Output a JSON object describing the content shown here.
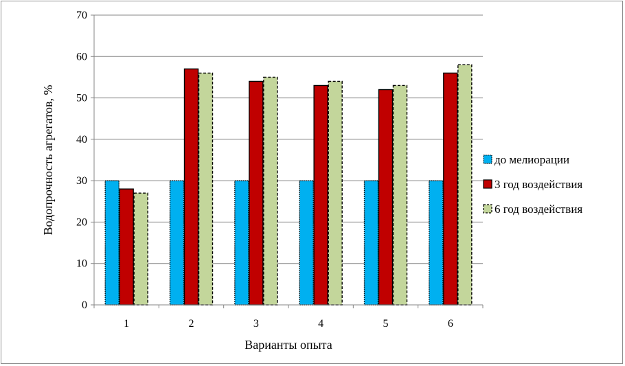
{
  "chart_data": {
    "type": "bar",
    "categories": [
      "1",
      "2",
      "3",
      "4",
      "5",
      "6"
    ],
    "series": [
      {
        "name": "до мелиорации",
        "values": [
          30,
          30,
          30,
          30,
          30,
          30
        ],
        "color": "#00b0f0",
        "border": "dotted"
      },
      {
        "name": "3 год воздействия",
        "values": [
          28,
          57,
          54,
          53,
          52,
          56
        ],
        "color": "#c00000",
        "border": "solid"
      },
      {
        "name": "6 год воздействия",
        "values": [
          27,
          56,
          55,
          54,
          53,
          58
        ],
        "color": "#c3d69b",
        "border": "dashed"
      }
    ],
    "xlabel": "Варианты опыта",
    "ylabel": "Водопрочность агрегатов, %",
    "ylim": [
      0,
      70
    ],
    "yticks": [
      0,
      10,
      20,
      30,
      40,
      50,
      60,
      70
    ],
    "grid": true,
    "legend_position": "right"
  }
}
